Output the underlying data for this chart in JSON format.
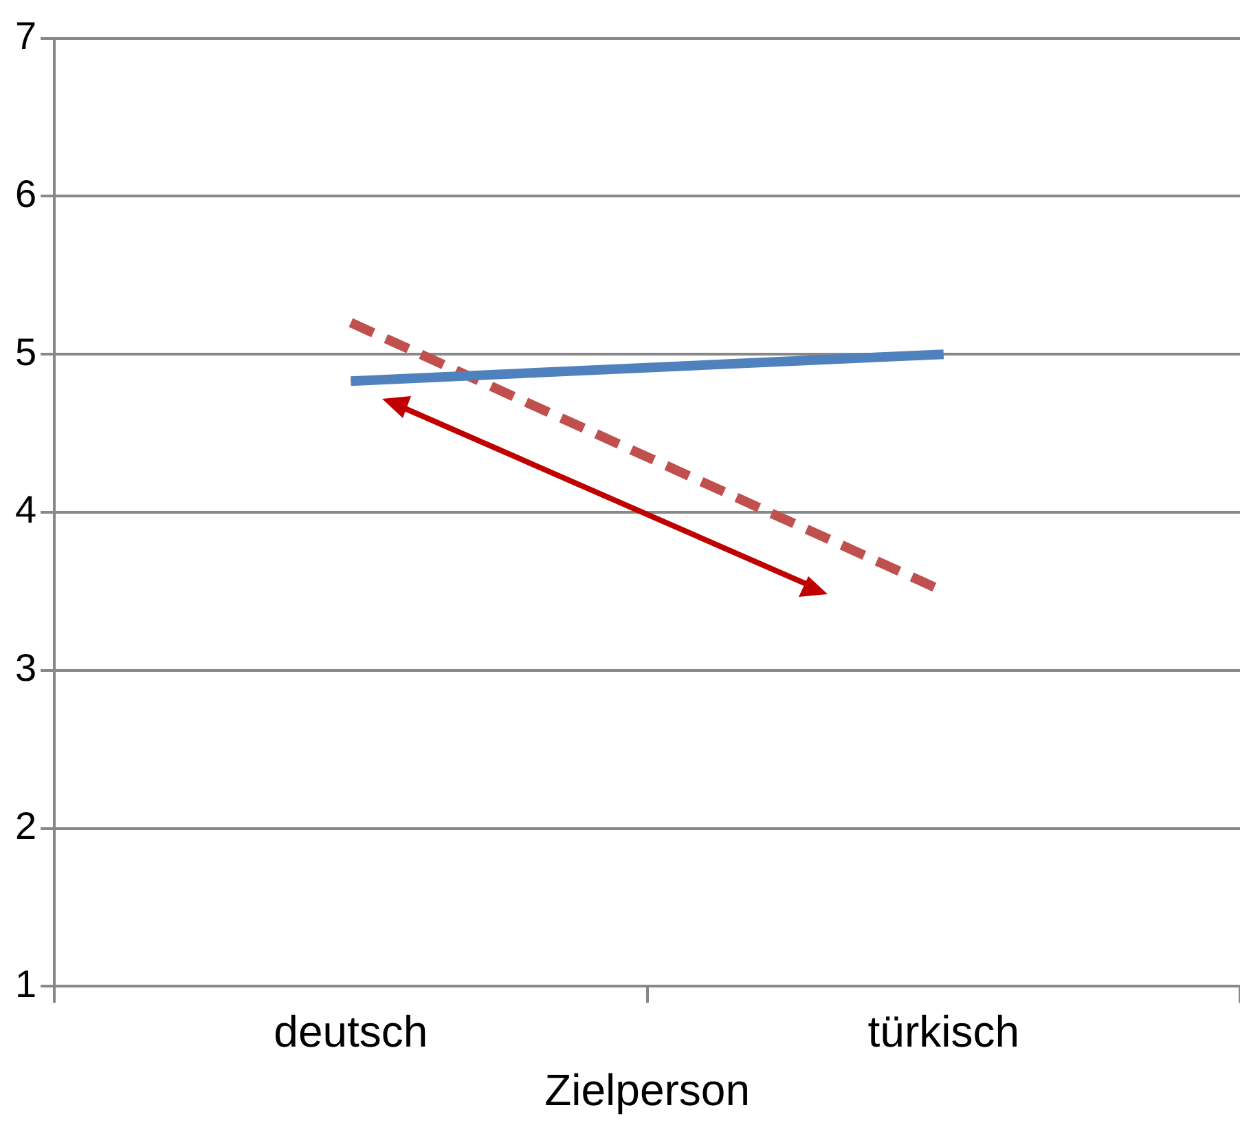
{
  "chart_data": {
    "type": "line",
    "xlabel": "Zielperson",
    "categories": [
      "deutsch",
      "türkisch"
    ],
    "series": [
      {
        "color": "#4f81bd",
        "values": [
          4.83,
          5.0
        ],
        "line_style": "solid"
      },
      {
        "color": "#c0504d",
        "values": [
          5.2,
          3.5
        ],
        "line_style": "dashed"
      }
    ],
    "ylim": [
      1,
      7
    ],
    "yticks": [
      1,
      2,
      3,
      4,
      5,
      6,
      7
    ],
    "grid": "y",
    "legend": false,
    "marker": "none"
  }
}
